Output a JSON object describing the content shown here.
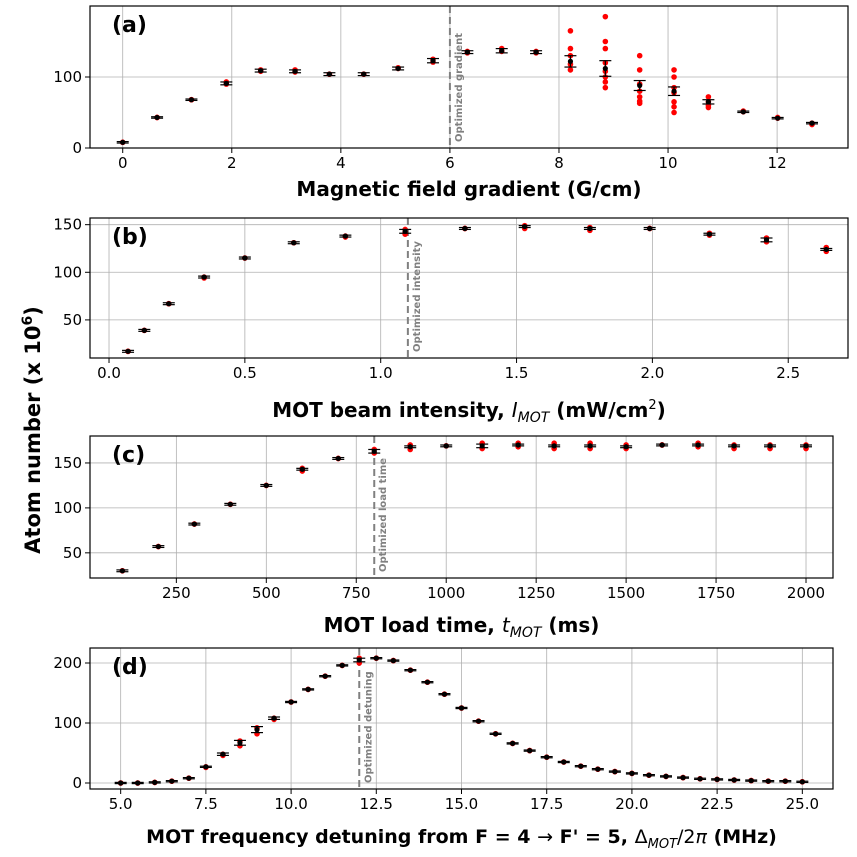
{
  "figure": {
    "shared_ylabel": "Atom number (x 10",
    "shared_ylabel_exp": "6",
    "shared_ylabel_close": ")"
  },
  "colors": {
    "raw_points": "#ff0000",
    "mean_points": "#000000",
    "grid": "#b0b0b0",
    "optimized_line": "#808080"
  },
  "chart_data": [
    {
      "type": "scatter",
      "panel_label": "(a)",
      "xlabel": "Magnetic field gradient (G/cm)",
      "ylabel": "",
      "xlim": [
        -0.6,
        13.3
      ],
      "ylim": [
        0,
        200
      ],
      "xticks": [
        0,
        2,
        4,
        6,
        8,
        10,
        12
      ],
      "xtick_labels": [
        "0",
        "2",
        "4",
        "6",
        "8",
        "10",
        "12"
      ],
      "yticks": [
        0,
        100
      ],
      "ytick_labels": [
        "0",
        "100"
      ],
      "grid": true,
      "optimized": {
        "x": 6,
        "label": "Optimized gradient"
      },
      "series": [
        {
          "x": [
            0,
            0.63,
            1.26,
            1.9,
            2.53,
            3.16,
            3.79,
            4.42,
            5.05,
            5.69,
            6.32,
            6.95,
            7.58,
            8.21,
            8.85,
            9.48,
            10.11,
            10.74,
            11.38,
            12.01,
            12.64
          ],
          "y": [
            8,
            43,
            68,
            91,
            109,
            108,
            104,
            104,
            112,
            123,
            135,
            137,
            135,
            122,
            112,
            88,
            80,
            65,
            51,
            42,
            35
          ],
          "yerr": [
            1,
            1,
            1,
            2,
            2,
            2,
            2,
            2,
            2,
            3,
            2,
            3,
            2,
            8,
            11,
            7,
            6,
            3,
            1,
            1,
            1
          ],
          "raw": [
            [
              8,
              8
            ],
            [
              43,
              43
            ],
            [
              68,
              68
            ],
            [
              90,
              93
            ],
            [
              110,
              108
            ],
            [
              110,
              107
            ],
            [
              104,
              104
            ],
            [
              104,
              104
            ],
            [
              112,
              113
            ],
            [
              121,
              125
            ],
            [
              134,
              136
            ],
            [
              136,
              140
            ],
            [
              134,
              136
            ],
            [
              165,
              140,
              130,
              118,
              110
            ],
            [
              185,
              150,
              140,
              120,
              108,
              100,
              93,
              85
            ],
            [
              130,
              110,
              90,
              80,
              72,
              66,
              63
            ],
            [
              110,
              100,
              85,
              78,
              65,
              58,
              50
            ],
            [
              72,
              65,
              60,
              57
            ],
            [
              52,
              51
            ],
            [
              42,
              43
            ],
            [
              35,
              33
            ]
          ]
        }
      ]
    },
    {
      "type": "scatter",
      "panel_label": "(b)",
      "xlabel": "MOT beam intensity,",
      "xlabel_var": "I",
      "xlabel_sub": "MOT",
      "xlabel_unit": " (mW/cm",
      "xlabel_unit_exp": "2",
      "xlabel_unit_close": ")",
      "ylabel": "",
      "xlim": [
        -0.07,
        2.72
      ],
      "ylim": [
        10,
        157
      ],
      "xticks": [
        0.0,
        0.5,
        1.0,
        1.5,
        2.0,
        2.5
      ],
      "xtick_labels": [
        "0.0",
        "0.5",
        "1.0",
        "1.5",
        "2.0",
        "2.5"
      ],
      "yticks": [
        50,
        100,
        150
      ],
      "ytick_labels": [
        "50",
        "100",
        "150"
      ],
      "grid": true,
      "optimized": {
        "x": 1.1,
        "label": "Optimized intensity"
      },
      "series": [
        {
          "x": [
            0.07,
            0.13,
            0.22,
            0.35,
            0.5,
            0.68,
            0.87,
            1.09,
            1.31,
            1.53,
            1.77,
            1.99,
            2.21,
            2.42,
            2.64
          ],
          "y": [
            17,
            39,
            67,
            95,
            115,
            131,
            138,
            143,
            146,
            148,
            146,
            146,
            140,
            134,
            124
          ],
          "yerr": [
            1,
            1,
            1,
            1,
            1,
            1,
            1,
            2,
            1,
            1,
            1,
            1,
            1,
            2,
            1
          ],
          "raw": [
            [
              17,
              17
            ],
            [
              39,
              39
            ],
            [
              67,
              67
            ],
            [
              94,
              95
            ],
            [
              115,
              115
            ],
            [
              131,
              131
            ],
            [
              138,
              137
            ],
            [
              145,
              140,
              142
            ],
            [
              146,
              146
            ],
            [
              149,
              146
            ],
            [
              147,
              144
            ],
            [
              146,
              146
            ],
            [
              141,
              139
            ],
            [
              136,
              132
            ],
            [
              126,
              122
            ]
          ]
        }
      ]
    },
    {
      "type": "scatter",
      "panel_label": "(c)",
      "xlabel": "MOT load time,",
      "xlabel_var": "t",
      "xlabel_sub": "MOT",
      "xlabel_unit": " (ms)",
      "ylabel": "",
      "xlim": [
        10,
        2075
      ],
      "ylim": [
        22,
        180
      ],
      "xticks": [
        250,
        500,
        750,
        1000,
        1250,
        1500,
        1750,
        2000
      ],
      "xtick_labels": [
        "250",
        "500",
        "750",
        "1000",
        "1250",
        "1500",
        "1750",
        "2000"
      ],
      "yticks": [
        50,
        100,
        150
      ],
      "ytick_labels": [
        "50",
        "100",
        "150"
      ],
      "grid": true,
      "optimized": {
        "x": 800,
        "label": "Optimized load time"
      },
      "series": [
        {
          "x": [
            100,
            200,
            300,
            400,
            500,
            600,
            700,
            800,
            900,
            1000,
            1100,
            1200,
            1300,
            1400,
            1500,
            1600,
            1700,
            1800,
            1900,
            2000
          ],
          "y": [
            30,
            57,
            82,
            104,
            125,
            143,
            155,
            163,
            168,
            169,
            169,
            170,
            169,
            169,
            168,
            170,
            170,
            169,
            169,
            169
          ],
          "yerr": [
            1,
            1,
            1,
            1,
            1,
            1,
            1,
            2,
            1,
            1,
            2,
            1,
            1,
            1,
            1,
            1,
            1,
            1,
            1,
            1
          ],
          "raw": [
            [
              30,
              30
            ],
            [
              57,
              57
            ],
            [
              82,
              82
            ],
            [
              104,
              104
            ],
            [
              125,
              125
            ],
            [
              144,
              141
            ],
            [
              155,
              155
            ],
            [
              165,
              161
            ],
            [
              170,
              165
            ],
            [
              169,
              169
            ],
            [
              172,
              166
            ],
            [
              172,
              168
            ],
            [
              172,
              166
            ],
            [
              172,
              166
            ],
            [
              170,
              166
            ],
            [
              170,
              170
            ],
            [
              172,
              168
            ],
            [
              170,
              166
            ],
            [
              170,
              166
            ],
            [
              170,
              166
            ]
          ]
        }
      ]
    },
    {
      "type": "scatter",
      "panel_label": "(d)",
      "xlabel": "MOT frequency detuning from F = 4",
      "xlabel_arrow": "→",
      "xlabel_mid": " F' = 5, ",
      "xlabel_var": "Δ",
      "xlabel_sub": "MOT",
      "xlabel_unit": "/2",
      "xlabel_pi": "π",
      "xlabel_close": " (MHz)",
      "ylabel": "",
      "xlim": [
        4.1,
        25.9
      ],
      "ylim": [
        -10,
        225
      ],
      "xticks": [
        5.0,
        7.5,
        10.0,
        12.5,
        15.0,
        17.5,
        20.0,
        22.5,
        25.0
      ],
      "xtick_labels": [
        "5.0",
        "7.5",
        "10.0",
        "12.5",
        "15.0",
        "17.5",
        "20.0",
        "22.5",
        "25.0"
      ],
      "yticks": [
        0,
        100,
        200
      ],
      "ytick_labels": [
        "0",
        "100",
        "200"
      ],
      "grid": true,
      "optimized": {
        "x": 12,
        "label": "Optimized detuning"
      },
      "series": [
        {
          "x": [
            5.0,
            5.5,
            6.0,
            6.5,
            7.0,
            7.5,
            8.0,
            8.5,
            9.0,
            9.5,
            10.0,
            10.5,
            11.0,
            11.5,
            12.0,
            12.5,
            13.0,
            13.5,
            14.0,
            14.5,
            15.0,
            15.5,
            16.0,
            16.5,
            17.0,
            17.5,
            18.0,
            18.5,
            19.0,
            19.5,
            20.0,
            20.5,
            21.0,
            21.5,
            22.0,
            22.5,
            23.0,
            23.5,
            24.0,
            24.5,
            25.0
          ],
          "y": [
            0,
            0,
            1,
            3,
            8,
            27,
            48,
            67,
            89,
            108,
            135,
            156,
            178,
            196,
            205,
            208,
            204,
            188,
            168,
            148,
            125,
            103,
            82,
            66,
            54,
            43,
            35,
            28,
            23,
            19,
            16,
            13,
            11,
            9,
            7,
            6,
            5,
            4,
            3,
            3,
            2
          ],
          "yerr": [
            1,
            1,
            1,
            1,
            1,
            1,
            2,
            4,
            5,
            2,
            1,
            1,
            1,
            1,
            3,
            1,
            1,
            1,
            1,
            1,
            1,
            1,
            1,
            1,
            1,
            1,
            1,
            1,
            1,
            1,
            1,
            1,
            1,
            1,
            1,
            1,
            1,
            1,
            1,
            1,
            1
          ],
          "raw": [
            [
              0,
              0
            ],
            [
              0,
              0
            ],
            [
              1,
              1
            ],
            [
              3,
              3
            ],
            [
              8,
              8
            ],
            [
              27,
              26
            ],
            [
              48,
              46
            ],
            [
              70,
              62
            ],
            [
              92,
              82
            ],
            [
              108,
              106
            ],
            [
              135,
              135
            ],
            [
              156,
              156
            ],
            [
              178,
              178
            ],
            [
              196,
              196
            ],
            [
              208,
              200
            ],
            [
              208,
              208
            ],
            [
              204,
              204
            ],
            [
              188,
              188
            ],
            [
              168,
              168
            ],
            [
              148,
              148
            ],
            [
              125,
              125
            ],
            [
              103,
              103
            ],
            [
              82,
              82
            ],
            [
              66,
              66
            ],
            [
              54,
              54
            ],
            [
              43,
              43
            ],
            [
              35,
              35
            ],
            [
              28,
              28
            ],
            [
              23,
              23
            ],
            [
              19,
              19
            ],
            [
              16,
              16
            ],
            [
              13,
              13
            ],
            [
              11,
              11
            ],
            [
              9,
              9
            ],
            [
              7,
              7
            ],
            [
              6,
              6
            ],
            [
              5,
              5
            ],
            [
              4,
              4
            ],
            [
              3,
              3
            ],
            [
              3,
              3
            ],
            [
              2,
              2
            ]
          ]
        }
      ]
    }
  ]
}
